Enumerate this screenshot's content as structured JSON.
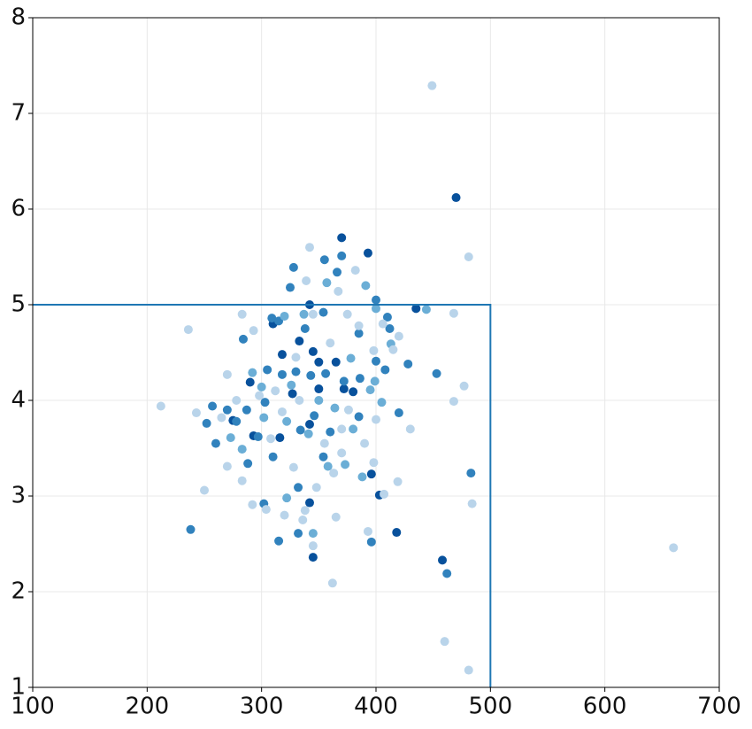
{
  "chart_data": {
    "type": "scatter",
    "xlim": [
      100,
      700
    ],
    "ylim": [
      1,
      8
    ],
    "xticks": [
      100,
      200,
      300,
      400,
      500,
      600,
      700
    ],
    "yticks": [
      1,
      2,
      3,
      4,
      5,
      6,
      7,
      8
    ],
    "grid": true,
    "box": {
      "x": 500,
      "y": 5,
      "color": "#1f77b4"
    },
    "series": [
      {
        "color": "#08519c",
        "x": [
          470,
          345,
          333,
          318,
          350,
          365,
          380,
          290,
          327,
          293,
          342,
          342,
          396,
          418,
          458,
          345,
          370,
          393,
          342,
          310,
          435,
          372,
          275,
          403,
          316,
          350
        ],
        "values": [
          6.12,
          4.51,
          4.62,
          4.48,
          4.4,
          4.4,
          4.09,
          4.19,
          4.07,
          3.63,
          3.75,
          2.93,
          3.23,
          2.62,
          2.33,
          2.36,
          5.7,
          5.54,
          5.0,
          4.8,
          4.96,
          4.12,
          3.79,
          3.01,
          3.61,
          4.12
        ]
      },
      {
        "color": "#3182bd",
        "x": [
          325,
          328,
          355,
          366,
          370,
          309,
          315,
          284,
          338,
          354,
          408,
          428,
          453,
          400,
          386,
          372,
          356,
          343,
          318,
          305,
          303,
          278,
          270,
          257,
          252,
          260,
          288,
          297,
          310,
          334,
          360,
          385,
          420,
          302,
          332,
          315,
          332,
          396,
          462,
          483,
          238,
          400,
          410,
          385,
          330,
          346,
          354,
          412,
          287
        ],
        "values": [
          5.18,
          5.39,
          5.47,
          5.34,
          5.51,
          4.86,
          4.83,
          4.64,
          4.75,
          4.92,
          4.32,
          4.38,
          4.28,
          4.41,
          4.23,
          4.2,
          4.28,
          4.26,
          4.27,
          4.32,
          3.98,
          3.78,
          3.9,
          3.94,
          3.76,
          3.55,
          3.34,
          3.62,
          3.41,
          3.69,
          3.67,
          3.83,
          3.87,
          2.92,
          3.09,
          2.53,
          2.61,
          2.52,
          2.19,
          3.24,
          2.65,
          5.05,
          4.87,
          4.7,
          4.3,
          3.84,
          3.41,
          4.75,
          3.9
        ]
      },
      {
        "color": "#6baed6",
        "x": [
          444,
          400,
          391,
          357,
          337,
          320,
          292,
          300,
          326,
          350,
          364,
          380,
          399,
          413,
          405,
          273,
          283,
          302,
          322,
          341,
          358,
          373,
          388,
          322,
          345,
          378,
          395
        ],
        "values": [
          4.95,
          4.96,
          5.2,
          5.23,
          4.9,
          4.88,
          4.29,
          4.14,
          4.16,
          4.0,
          3.92,
          3.7,
          4.2,
          4.59,
          3.98,
          3.61,
          3.49,
          3.82,
          3.78,
          3.65,
          3.31,
          3.33,
          3.2,
          2.98,
          2.61,
          4.44,
          4.11
        ]
      },
      {
        "color": "#b9d4ea",
        "x": [
          449,
          481,
          342,
          382,
          367,
          339,
          406,
          468,
          420,
          415,
          398,
          236,
          283,
          293,
          270,
          243,
          212,
          270,
          283,
          250,
          292,
          304,
          320,
          328,
          336,
          338,
          348,
          363,
          365,
          393,
          407,
          419,
          430,
          477,
          468,
          484,
          460,
          481,
          362,
          660,
          345,
          355,
          370,
          390,
          400,
          312,
          330,
          360,
          375,
          385,
          345,
          333,
          318,
          308,
          370,
          376,
          398,
          298,
          278,
          265
        ],
        "values": [
          7.29,
          5.5,
          5.6,
          5.36,
          5.14,
          5.25,
          4.8,
          4.91,
          4.67,
          4.53,
          4.52,
          4.74,
          4.9,
          4.73,
          4.27,
          3.87,
          3.94,
          3.31,
          3.16,
          3.06,
          2.91,
          2.86,
          2.8,
          3.3,
          2.75,
          2.85,
          3.09,
          3.24,
          2.78,
          2.63,
          3.02,
          3.15,
          3.7,
          4.15,
          3.99,
          2.92,
          1.48,
          1.18,
          2.09,
          2.46,
          2.48,
          3.55,
          3.45,
          3.55,
          3.8,
          4.1,
          4.45,
          4.6,
          4.9,
          4.78,
          4.9,
          4.0,
          3.88,
          3.6,
          3.7,
          3.9,
          3.35,
          4.05,
          4.0,
          3.82
        ]
      }
    ]
  }
}
